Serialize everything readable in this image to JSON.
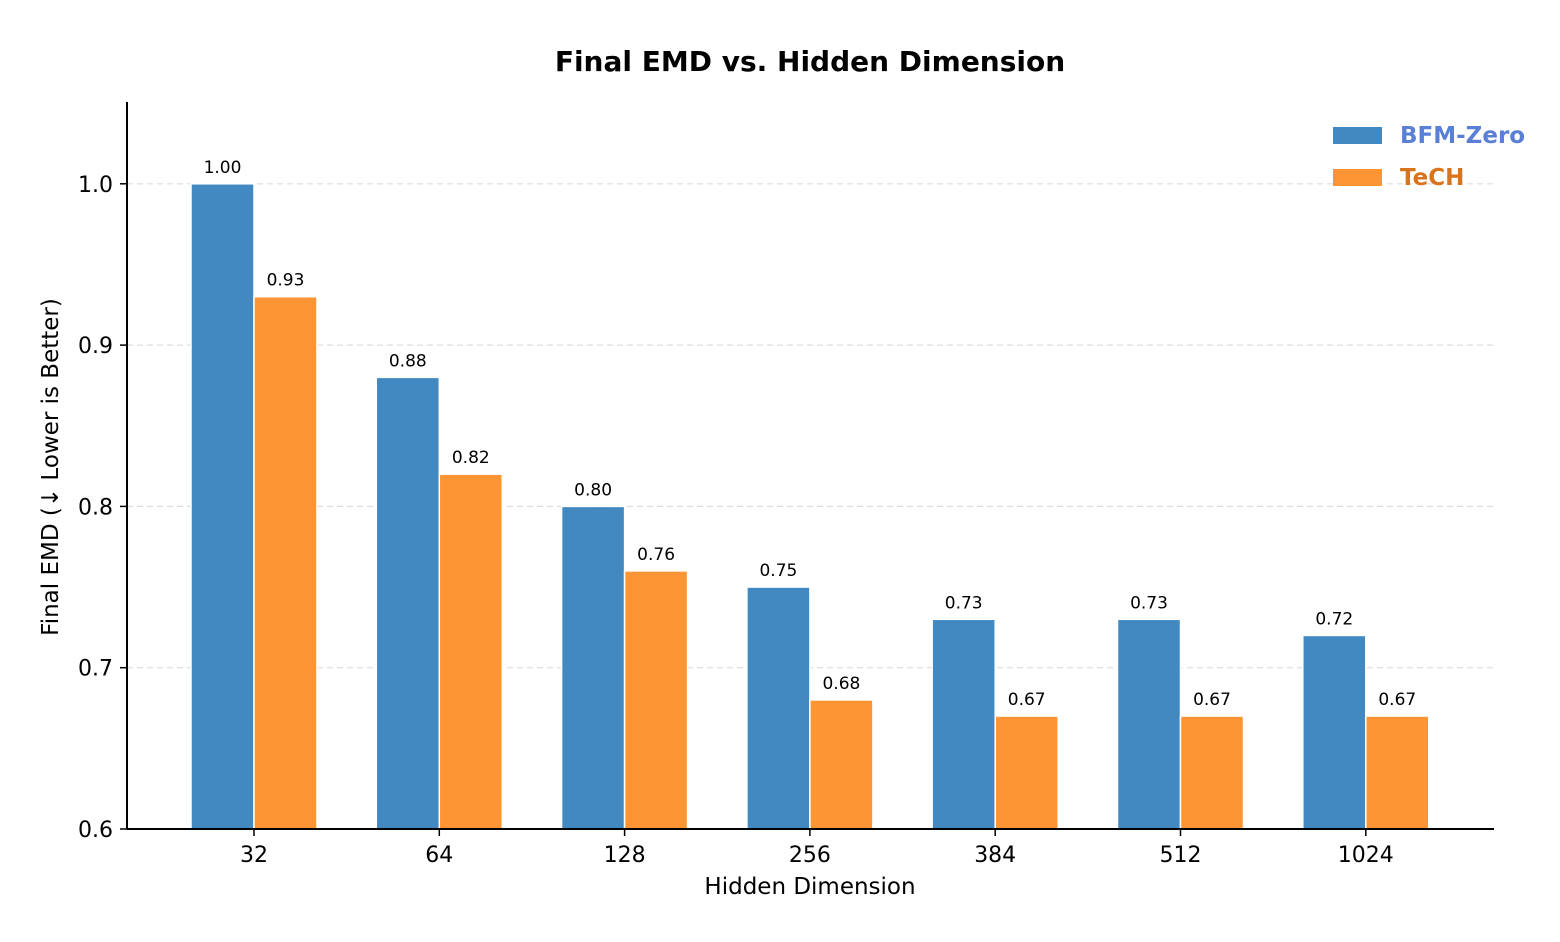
{
  "chart_data": {
    "type": "bar",
    "title": "Final EMD vs. Hidden Dimension",
    "xlabel": "Hidden Dimension",
    "ylabel": "Final EMD (↓ Lower is Better)",
    "categories": [
      "32",
      "64",
      "128",
      "256",
      "384",
      "512",
      "1024"
    ],
    "ylim": [
      0.6,
      1.05
    ],
    "yticks": [
      0.6,
      0.7,
      0.8,
      0.9,
      1.0
    ],
    "ytick_labels": [
      "0.6",
      "0.7",
      "0.8",
      "0.9",
      "1.0"
    ],
    "grid": "y-dashed",
    "legend_position": "top-right",
    "series": [
      {
        "name": "BFM-Zero",
        "color": "#4189c0",
        "legend_text_color": "#5a7fd6",
        "values": [
          1.0,
          0.88,
          0.8,
          0.75,
          0.73,
          0.73,
          0.72
        ],
        "labels": [
          "1.00",
          "0.88",
          "0.80",
          "0.75",
          "0.73",
          "0.73",
          "0.72"
        ]
      },
      {
        "name": "TeCH",
        "color": "#fe9535",
        "legend_text_color": "#d9741e",
        "values": [
          0.93,
          0.82,
          0.76,
          0.68,
          0.67,
          0.67,
          0.67
        ],
        "labels": [
          "0.93",
          "0.82",
          "0.76",
          "0.68",
          "0.67",
          "0.67",
          "0.67"
        ]
      }
    ]
  }
}
